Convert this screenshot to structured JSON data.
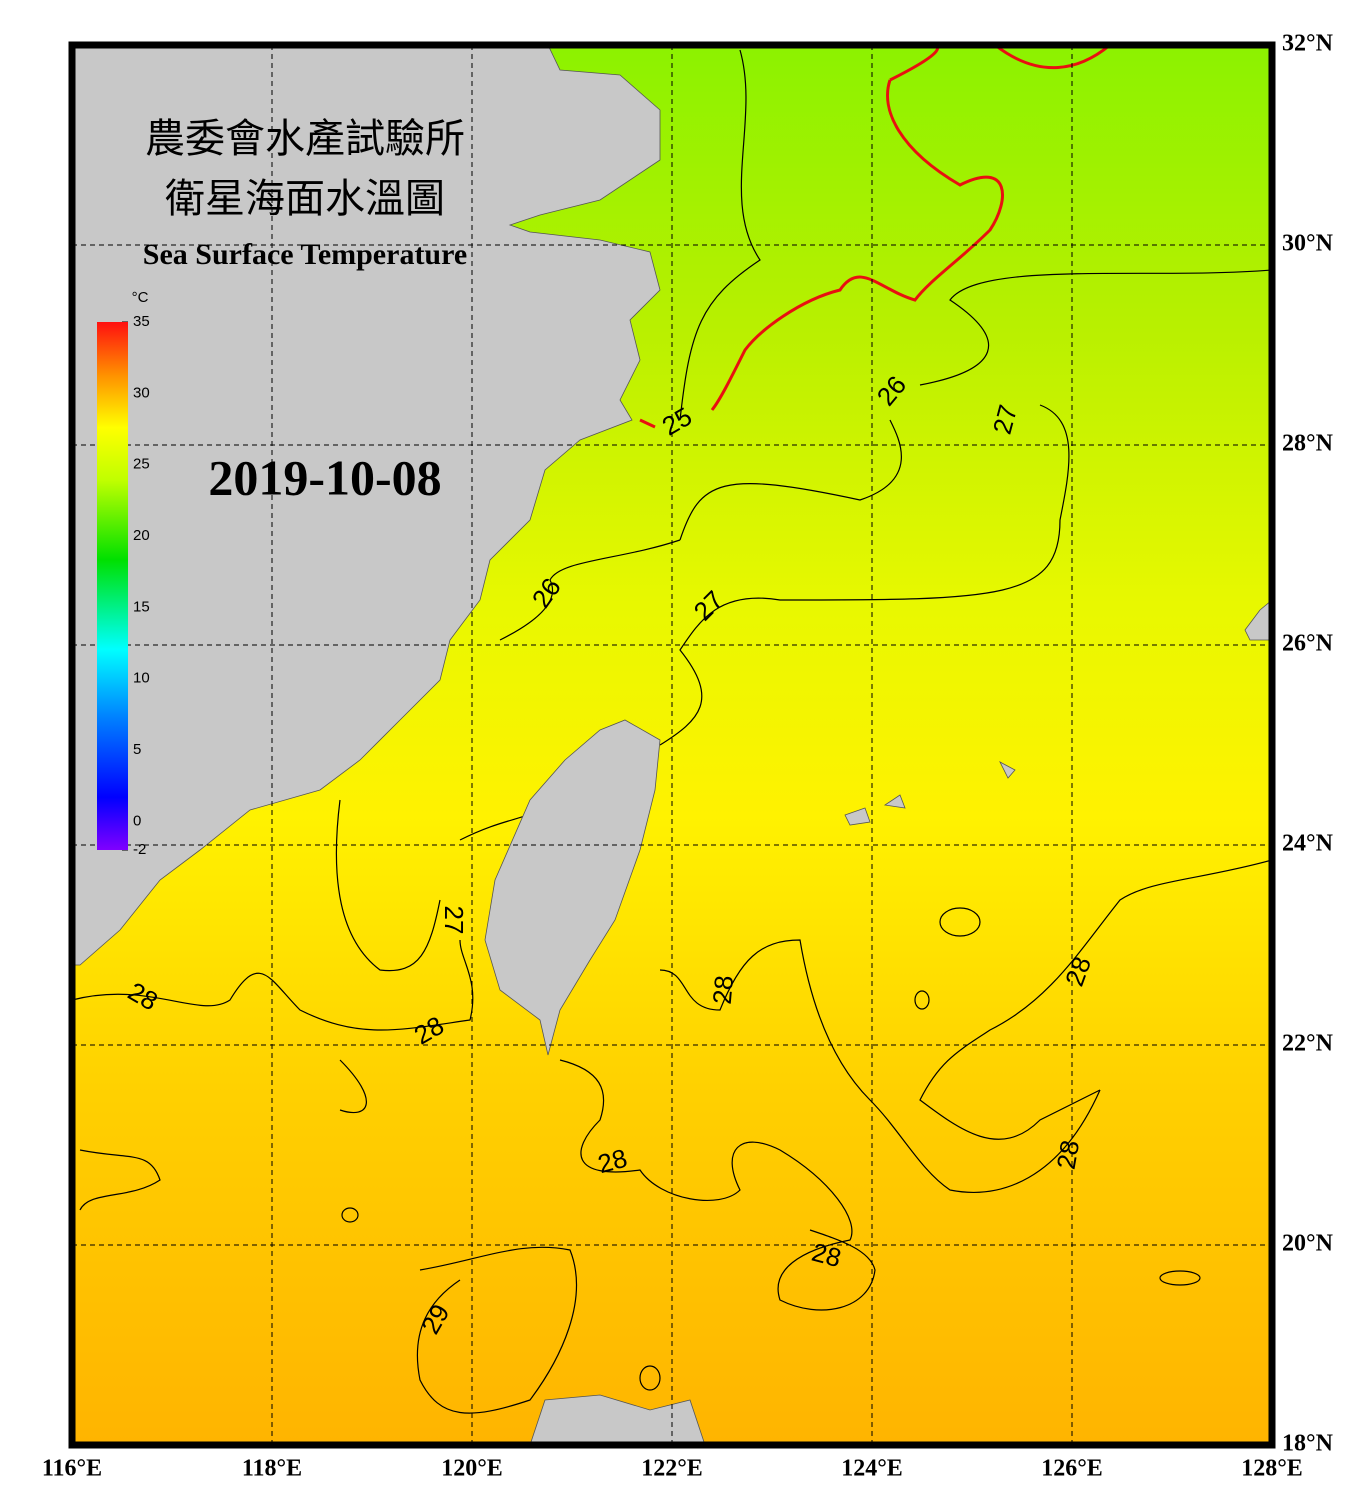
{
  "title": {
    "zh_line1": "農委會水產試驗所",
    "zh_line2": "衛星海面水溫圖",
    "en": "Sea Surface Temperature"
  },
  "date": "2019-10-08",
  "colorbar": {
    "unit": "°C",
    "range": [
      -2,
      35
    ],
    "ticks": [
      -2,
      0,
      5,
      10,
      15,
      20,
      25,
      30,
      35
    ]
  },
  "map": {
    "lon_range": [
      116,
      128
    ],
    "lat_range": [
      18,
      32
    ],
    "lon_ticks": [
      {
        "value": 116,
        "label": "116°E"
      },
      {
        "value": 118,
        "label": "118°E"
      },
      {
        "value": 120,
        "label": "120°E"
      },
      {
        "value": 122,
        "label": "122°E"
      },
      {
        "value": 124,
        "label": "124°E"
      },
      {
        "value": 126,
        "label": "126°E"
      },
      {
        "value": 128,
        "label": "128°E"
      }
    ],
    "lat_ticks": [
      {
        "value": 18,
        "label": "18°N"
      },
      {
        "value": 20,
        "label": "20°N"
      },
      {
        "value": 22,
        "label": "22°N"
      },
      {
        "value": 24,
        "label": "24°N"
      },
      {
        "value": 26,
        "label": "26°N"
      },
      {
        "value": 28,
        "label": "28°N"
      },
      {
        "value": 30,
        "label": "30°N"
      },
      {
        "value": 32,
        "label": "32°N"
      }
    ]
  },
  "contour_labels": [
    25,
    26,
    27,
    26,
    27,
    27,
    28,
    28,
    28,
    28,
    28,
    28,
    28,
    29
  ]
}
